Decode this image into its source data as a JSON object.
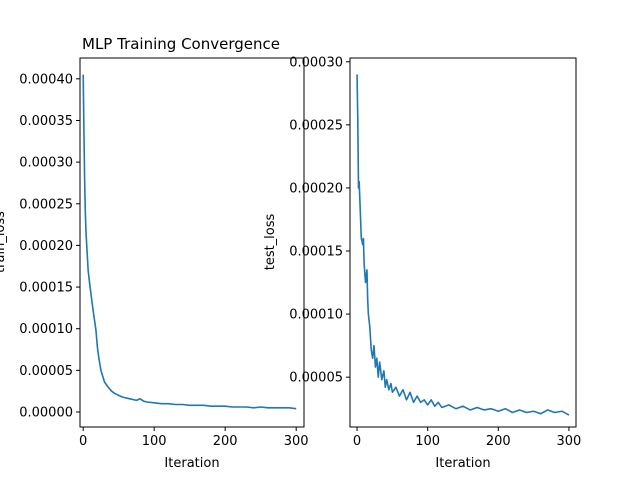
{
  "chart_data": [
    {
      "type": "line",
      "title": "MLP Training Convergence",
      "xlabel": "Iteration",
      "ylabel": "train_loss",
      "xlim": [
        -4.5,
        311
      ],
      "ylim": [
        -1.8e-05,
        0.000425
      ],
      "xticks": [
        0,
        100,
        200,
        300
      ],
      "yticks": [
        "0.00000",
        "0.00005",
        "0.00010",
        "0.00015",
        "0.00020",
        "0.00025",
        "0.00030",
        "0.00035",
        "0.00040"
      ],
      "grid": false,
      "color": "#1f77b4",
      "series": [
        {
          "x": [
            0,
            1,
            2,
            3,
            4,
            5,
            6,
            7,
            8,
            9,
            10,
            12,
            14,
            16,
            18,
            20,
            22,
            25,
            30,
            35,
            40,
            45,
            50,
            55,
            60,
            65,
            70,
            75,
            80,
            85,
            90,
            100,
            110,
            120,
            130,
            140,
            150,
            160,
            170,
            180,
            190,
            200,
            210,
            220,
            230,
            240,
            250,
            260,
            270,
            280,
            290,
            300
          ],
          "y": [
            0.000405,
            0.00034,
            0.00028,
            0.00024,
            0.000215,
            0.0002,
            0.000185,
            0.00017,
            0.000162,
            0.000155,
            0.000148,
            0.000135,
            0.000122,
            0.00011,
            9.8e-05,
            7.8e-05,
            6.5e-05,
            5e-05,
            3.6e-05,
            3e-05,
            2.5e-05,
            2.2e-05,
            2e-05,
            1.8e-05,
            1.7e-05,
            1.6e-05,
            1.5e-05,
            1.4e-05,
            1.6e-05,
            1.3e-05,
            1.2e-05,
            1.1e-05,
            1e-05,
            1e-05,
            9e-06,
            9e-06,
            8e-06,
            8e-06,
            8e-06,
            7e-06,
            7e-06,
            7e-06,
            6e-06,
            6e-06,
            6e-06,
            5e-06,
            6e-06,
            5e-06,
            5e-06,
            5e-06,
            5e-06,
            4e-06
          ]
        }
      ]
    },
    {
      "type": "line",
      "title": "",
      "xlabel": "Iteration",
      "ylabel": "test_loss",
      "xlim": [
        -10,
        310
      ],
      "ylim": [
        1.05e-05,
        0.000303
      ],
      "xticks": [
        0,
        100,
        200,
        300
      ],
      "yticks": [
        "0.00005",
        "0.00010",
        "0.00015",
        "0.00020",
        "0.00025",
        "0.00030"
      ],
      "grid": false,
      "color": "#1f77b4",
      "series": [
        {
          "x": [
            0,
            1,
            2,
            3,
            4,
            5,
            6,
            7,
            8,
            9,
            10,
            12,
            14,
            15,
            16,
            18,
            20,
            22,
            24,
            26,
            28,
            30,
            32,
            35,
            38,
            40,
            42,
            45,
            48,
            50,
            55,
            60,
            65,
            70,
            75,
            80,
            85,
            90,
            95,
            100,
            105,
            110,
            115,
            120,
            130,
            140,
            150,
            160,
            170,
            180,
            190,
            200,
            210,
            220,
            230,
            240,
            250,
            260,
            270,
            280,
            290,
            300
          ],
          "y": [
            0.00029,
            0.000255,
            0.0002,
            0.000205,
            0.00019,
            0.000175,
            0.00016,
            0.000158,
            0.000155,
            0.00016,
            0.00014,
            0.000125,
            0.000135,
            0.000112,
            0.0001,
            9e-05,
            7.2e-05,
            6.5e-05,
            7.5e-05,
            5.8e-05,
            6.5e-05,
            5e-05,
            6.2e-05,
            4.8e-05,
            5.5e-05,
            4.2e-05,
            4.8e-05,
            4e-05,
            4.5e-05,
            3.8e-05,
            4.2e-05,
            3.5e-05,
            4e-05,
            3.2e-05,
            3.8e-05,
            3e-05,
            3.5e-05,
            3e-05,
            3.2e-05,
            2.8e-05,
            3.2e-05,
            2.7e-05,
            3e-05,
            2.6e-05,
            2.8e-05,
            2.5e-05,
            2.7e-05,
            2.4e-05,
            2.6e-05,
            2.4e-05,
            2.5e-05,
            2.3e-05,
            2.5e-05,
            2.2e-05,
            2.4e-05,
            2.2e-05,
            2.3e-05,
            2.1e-05,
            2.4e-05,
            2.2e-05,
            2.3e-05,
            2e-05
          ]
        }
      ]
    }
  ]
}
